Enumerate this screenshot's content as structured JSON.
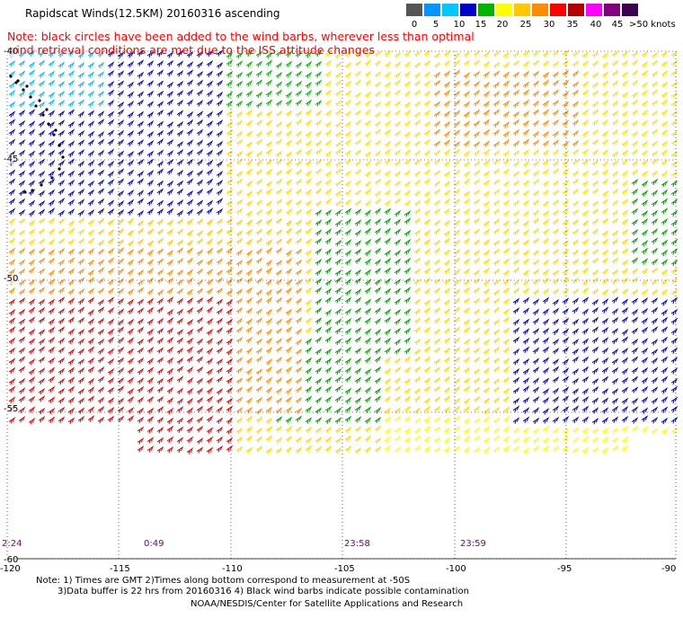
{
  "title": "Rapidscat Winds(12.5KM) 20160316 ascending",
  "note": "Note: black circles have been added to the wind barbs, wherever less than optimal wind retrieval conditions are met due to the ISS attitude changes",
  "colorbar": {
    "labels": [
      "0",
      "5",
      "10",
      "15",
      "20",
      "25",
      "30",
      "35",
      "40",
      "45",
      ">50 knots"
    ],
    "colors": [
      "#555555",
      "#0096ff",
      "#00c8ff",
      "#0000cd",
      "#00b400",
      "#ffff00",
      "#ffc800",
      "#ff8c00",
      "#ff0000",
      "#b40000",
      "#ff00ff",
      "#800080",
      "#3c0050"
    ]
  },
  "map": {
    "lon_range": [
      -120,
      -90
    ],
    "lat_range": [
      -40,
      -60
    ],
    "lat_labels": [
      "-40",
      "-45",
      "-50",
      "-55",
      "-60"
    ],
    "lon_labels": [
      "-120",
      "-115",
      "-110",
      "-105",
      "-100",
      "-95",
      "-90"
    ]
  },
  "pass_times": [
    {
      "label": "2:24"
    },
    {
      "label": "0:49"
    },
    {
      "label": "23:58"
    },
    {
      "label": "23:59"
    }
  ],
  "footer": {
    "line1": "Note: 1) Times are GMT 2)Times along bottom correspond to measurement at -50S",
    "line2": "3)Data buffer is 22 hrs from 20160316 4) Black wind barbs indicate possible contamination",
    "line3": "NOAA/NESDIS/Center for Satellite Applications and Research"
  }
}
